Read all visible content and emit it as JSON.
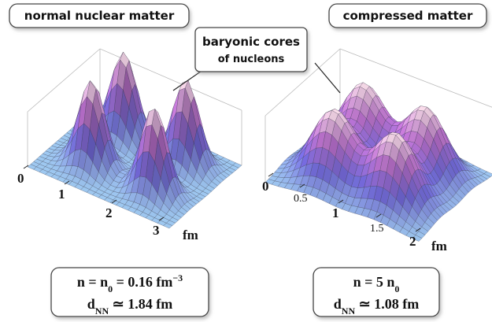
{
  "panels": [
    {
      "title": "normal nuclear matter",
      "axis_labels": [
        "0",
        "1",
        "2",
        "3"
      ],
      "unit": "fm",
      "formula": {
        "line1": {
          "a": "n = n",
          "sub": "0",
          "b": " = 0.16 fm",
          "sup": "−3"
        },
        "line2": {
          "a": "d",
          "sub": "NN",
          "b": " ≃ 1.84 fm"
        }
      }
    },
    {
      "title": "compressed matter",
      "axis_labels": [
        "0",
        "0.5",
        "1",
        "1.5",
        "2"
      ],
      "unit": "fm",
      "formula": {
        "line1": {
          "a": "n = 5 n",
          "sub": "0"
        },
        "line2": {
          "a": "d",
          "sub": "NN",
          "b": " ≃ 1.08 fm"
        }
      }
    }
  ],
  "callout": {
    "line1": "baryonic cores",
    "line2": "of nucleons"
  }
}
